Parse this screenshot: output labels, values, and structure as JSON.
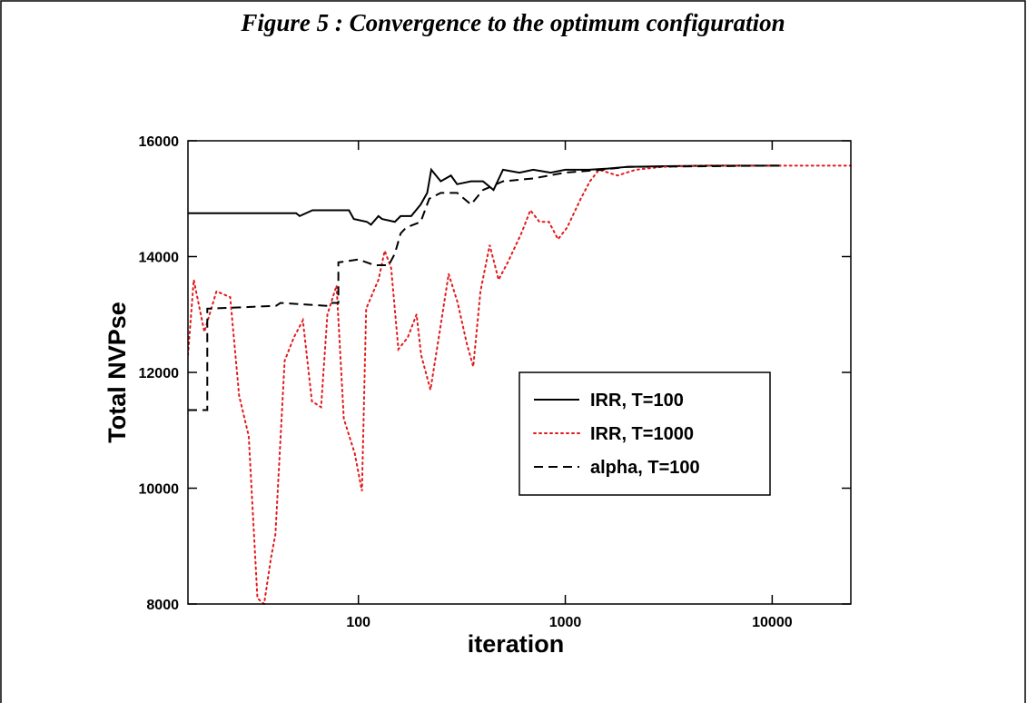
{
  "chart_data": {
    "type": "line",
    "title": "Figure 5 : Convergence to the optimum configuration",
    "x_label": "iteration",
    "y_label": "Total NVPse",
    "xscale": "log",
    "xlim": [
      15,
      24000
    ],
    "ylim": [
      8000,
      16000
    ],
    "xticks": [
      100,
      1000,
      10000
    ],
    "yticks": [
      8000,
      10000,
      12000,
      14000,
      16000
    ],
    "legend": "center right",
    "series": [
      {
        "name": "IRR, T=100",
        "color": "#000000",
        "dash": "solid",
        "x": [
          15,
          50,
          52,
          60,
          90,
          95,
          110,
          115,
          125,
          130,
          150,
          160,
          180,
          200,
          215,
          225,
          250,
          280,
          300,
          350,
          400,
          450,
          500,
          600,
          700,
          850,
          1000,
          1300,
          1600,
          2000,
          3000,
          5000,
          10000,
          11000
        ],
        "values": [
          14750,
          14750,
          14700,
          14800,
          14800,
          14650,
          14600,
          14550,
          14700,
          14650,
          14600,
          14700,
          14700,
          14900,
          15100,
          15500,
          15300,
          15400,
          15250,
          15300,
          15300,
          15150,
          15500,
          15450,
          15500,
          15450,
          15500,
          15500,
          15520,
          15550,
          15560,
          15570,
          15570,
          15570
        ]
      },
      {
        "name": "IRR, T=1000",
        "color": "#e31a1c",
        "dash": "dotted",
        "x": [
          15,
          16,
          18,
          20.6,
          24,
          26.5,
          29.5,
          32.5,
          35,
          37.8,
          39.7,
          44,
          48.7,
          53.9,
          59.6,
          66,
          70.8,
          78.4,
          85,
          96,
          104,
          109,
          125,
          134,
          144,
          156,
          173,
          191,
          201,
          223,
          247,
          273,
          302,
          334,
          359,
          389,
          431,
          476,
          527,
          613,
          678,
          750,
          833,
          922,
          1020,
          1188,
          1315,
          1455,
          1788,
          2190,
          2950,
          4900,
          10000,
          24000
        ],
        "values": [
          12300,
          13600,
          12700,
          13400,
          13300,
          11600,
          10900,
          8100,
          8000,
          8800,
          9200,
          12200,
          12600,
          12900,
          11500,
          11400,
          13000,
          13500,
          11200,
          10600,
          9950,
          13100,
          13600,
          14100,
          13800,
          12400,
          12600,
          13000,
          12300,
          11700,
          12700,
          13700,
          13200,
          12500,
          12100,
          13400,
          14200,
          13600,
          13900,
          14400,
          14800,
          14600,
          14600,
          14300,
          14500,
          15000,
          15300,
          15500,
          15400,
          15500,
          15550,
          15570,
          15570,
          15570
        ]
      },
      {
        "name": "alpha, T=100",
        "color": "#000000",
        "dash": "dashed",
        "x": [
          15,
          18.6,
          18.6,
          40,
          42,
          70,
          72,
          80,
          80,
          100,
          120,
          140,
          150,
          160,
          170,
          200,
          220,
          250,
          300,
          350,
          400,
          500,
          700,
          1000,
          1500,
          2000,
          10000,
          11000
        ],
        "values": [
          11350,
          11350,
          13100,
          13150,
          13200,
          13150,
          13200,
          13200,
          13900,
          13950,
          13850,
          13850,
          14050,
          14400,
          14500,
          14600,
          15000,
          15100,
          15100,
          14900,
          15150,
          15300,
          15350,
          15450,
          15500,
          15550,
          15570,
          15570
        ]
      }
    ]
  }
}
